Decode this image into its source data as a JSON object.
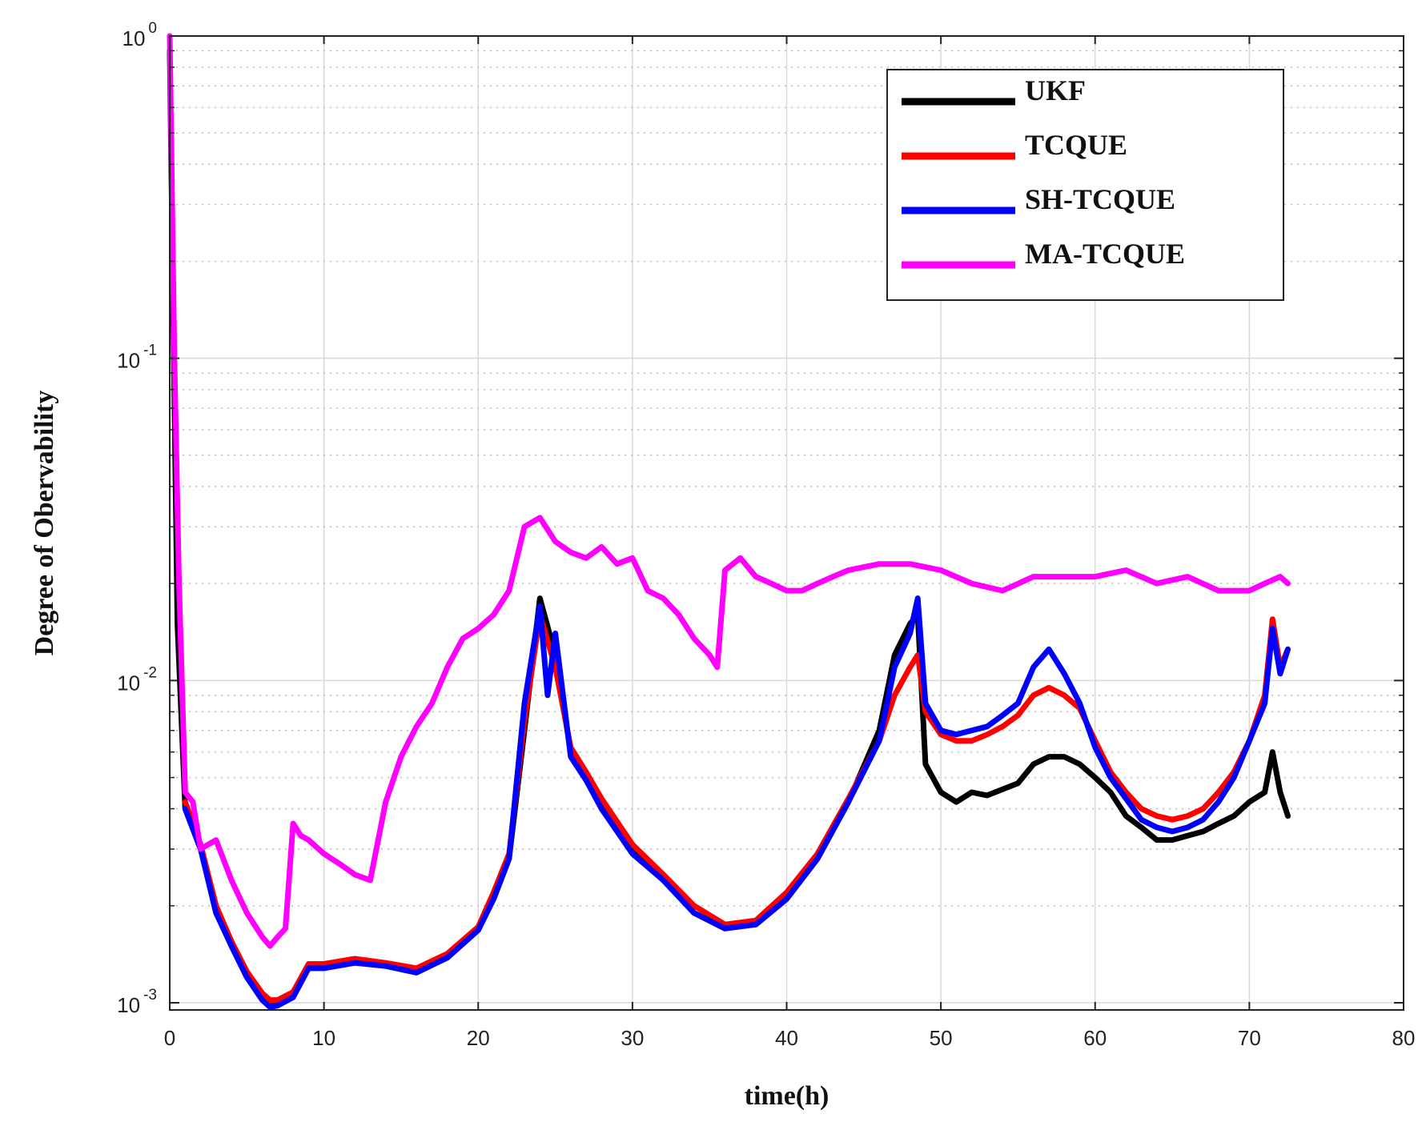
{
  "chart_data": {
    "type": "line",
    "xlabel": "time(h)",
    "ylabel": "Degree of Obervability",
    "xlim": [
      0,
      80
    ],
    "ylim": [
      0.00095,
      1
    ],
    "yscale": "log",
    "grid": true,
    "legend_position": "top-right",
    "x_ticks": [
      "0",
      "10",
      "20",
      "30",
      "40",
      "50",
      "60",
      "70",
      "80"
    ],
    "y_ticks": [
      {
        "value": 1,
        "base": "10",
        "exp": "0"
      },
      {
        "value": 0.1,
        "base": "10",
        "exp": "-1"
      },
      {
        "value": 0.01,
        "base": "10",
        "exp": "-2"
      },
      {
        "value": 0.001,
        "base": "10",
        "exp": "-3"
      }
    ],
    "series": [
      {
        "name": "UKF",
        "color": "#000000",
        "x": [
          0,
          0.5,
          1,
          2,
          3,
          4,
          5,
          6,
          6.5,
          7,
          8,
          9,
          10,
          12,
          14,
          16,
          18,
          20,
          21,
          22,
          23,
          24,
          25,
          26,
          27,
          28,
          30,
          32,
          34,
          36,
          38,
          40,
          42,
          44,
          46,
          47,
          48,
          48.5,
          49,
          50,
          51,
          52,
          53,
          54,
          55,
          56,
          57,
          58,
          59,
          60,
          61,
          62,
          63,
          64,
          65,
          66,
          67,
          68,
          69,
          70,
          71,
          71.5,
          72,
          72.5
        ],
        "y": [
          0.9,
          0.015,
          0.004,
          0.003,
          0.002,
          0.0015,
          0.0012,
          0.00105,
          0.001,
          0.001,
          0.00105,
          0.0013,
          0.0013,
          0.00135,
          0.0013,
          0.00125,
          0.0014,
          0.0017,
          0.0021,
          0.0028,
          0.007,
          0.018,
          0.012,
          0.006,
          0.005,
          0.0042,
          0.003,
          0.0024,
          0.0019,
          0.0017,
          0.00175,
          0.0021,
          0.0028,
          0.0042,
          0.007,
          0.012,
          0.015,
          0.016,
          0.0055,
          0.0045,
          0.0042,
          0.0045,
          0.0044,
          0.0046,
          0.0048,
          0.0055,
          0.0058,
          0.0058,
          0.0055,
          0.005,
          0.0045,
          0.0038,
          0.0035,
          0.0032,
          0.0032,
          0.0033,
          0.0034,
          0.0036,
          0.0038,
          0.0042,
          0.0045,
          0.006,
          0.0045,
          0.0038
        ]
      },
      {
        "name": "TCQUE",
        "color": "#ff0000",
        "x": [
          1,
          2,
          3,
          4,
          5,
          6,
          6.5,
          7,
          8,
          9,
          10,
          12,
          14,
          16,
          18,
          20,
          21,
          22,
          23,
          24,
          25,
          26,
          27,
          28,
          30,
          32,
          34,
          36,
          38,
          40,
          42,
          44,
          46,
          47,
          48,
          48.5,
          49,
          50,
          51,
          52,
          53,
          54,
          55,
          56,
          57,
          58,
          59,
          60,
          61,
          62,
          63,
          64,
          65,
          66,
          67,
          68,
          69,
          70,
          71,
          71.5,
          72,
          72.5
        ],
        "y": [
          0.0042,
          0.0031,
          0.002,
          0.00155,
          0.00125,
          0.00107,
          0.00102,
          0.00102,
          0.00108,
          0.00132,
          0.00132,
          0.00137,
          0.00133,
          0.00128,
          0.00142,
          0.00172,
          0.0022,
          0.0029,
          0.0075,
          0.016,
          0.011,
          0.0062,
          0.0052,
          0.0043,
          0.0031,
          0.0025,
          0.002,
          0.00175,
          0.0018,
          0.0022,
          0.0029,
          0.0043,
          0.0065,
          0.009,
          0.011,
          0.012,
          0.008,
          0.0068,
          0.0065,
          0.0065,
          0.0068,
          0.0072,
          0.0078,
          0.009,
          0.0095,
          0.009,
          0.0082,
          0.0065,
          0.0052,
          0.0045,
          0.004,
          0.0038,
          0.0037,
          0.0038,
          0.004,
          0.0045,
          0.0052,
          0.0065,
          0.009,
          0.0155,
          0.011,
          0.0125
        ]
      },
      {
        "name": "SH-TCQUE",
        "color": "#0000ff",
        "x": [
          1,
          2,
          3,
          4,
          5,
          6,
          6.5,
          7,
          8,
          9,
          10,
          12,
          14,
          16,
          18,
          20,
          21,
          22,
          23,
          24,
          24.5,
          25,
          26,
          27,
          28,
          30,
          32,
          34,
          36,
          38,
          40,
          42,
          44,
          46,
          47,
          48,
          48.5,
          49,
          50,
          51,
          52,
          53,
          54,
          55,
          56,
          57,
          58,
          59,
          60,
          61,
          62,
          63,
          64,
          65,
          66,
          67,
          68,
          69,
          70,
          71,
          71.5,
          72,
          72.5
        ],
        "y": [
          0.004,
          0.003,
          0.0019,
          0.0015,
          0.0012,
          0.00102,
          0.00097,
          0.00098,
          0.00104,
          0.00128,
          0.00128,
          0.00133,
          0.0013,
          0.00124,
          0.00138,
          0.00168,
          0.0021,
          0.0028,
          0.0085,
          0.017,
          0.009,
          0.014,
          0.0058,
          0.0049,
          0.004,
          0.0029,
          0.0024,
          0.0019,
          0.0017,
          0.00175,
          0.0021,
          0.0028,
          0.0042,
          0.0065,
          0.011,
          0.014,
          0.018,
          0.0085,
          0.007,
          0.0068,
          0.007,
          0.0072,
          0.0078,
          0.0085,
          0.011,
          0.0125,
          0.0105,
          0.0085,
          0.0062,
          0.005,
          0.0043,
          0.0037,
          0.0035,
          0.0034,
          0.0035,
          0.0037,
          0.0042,
          0.005,
          0.0065,
          0.0085,
          0.0145,
          0.0105,
          0.0125
        ]
      },
      {
        "name": "MA-TCQUE",
        "color": "#ff00ff",
        "x": [
          0,
          0.3,
          0.6,
          1,
          1.5,
          2,
          3,
          4,
          5,
          6,
          6.5,
          7,
          7.5,
          8,
          8.5,
          9,
          10,
          11,
          12,
          13,
          14,
          15,
          16,
          17,
          18,
          19,
          20,
          21,
          22,
          23,
          24,
          25,
          26,
          27,
          28,
          29,
          30,
          31,
          32,
          33,
          34,
          35,
          35.5,
          36,
          37,
          38,
          39,
          40,
          41,
          42,
          43,
          44,
          46,
          48,
          50,
          52,
          54,
          56,
          58,
          60,
          62,
          64,
          66,
          68,
          70,
          71,
          72,
          72.5
        ],
        "y": [
          1,
          0.1,
          0.02,
          0.0045,
          0.0042,
          0.003,
          0.0032,
          0.0024,
          0.0019,
          0.0016,
          0.0015,
          0.0016,
          0.0017,
          0.0036,
          0.0033,
          0.0032,
          0.0029,
          0.0027,
          0.0025,
          0.0024,
          0.0042,
          0.0058,
          0.0072,
          0.0085,
          0.011,
          0.0135,
          0.0145,
          0.016,
          0.019,
          0.03,
          0.032,
          0.027,
          0.025,
          0.024,
          0.026,
          0.023,
          0.024,
          0.019,
          0.018,
          0.016,
          0.0135,
          0.012,
          0.011,
          0.022,
          0.024,
          0.021,
          0.02,
          0.019,
          0.019,
          0.02,
          0.021,
          0.022,
          0.023,
          0.023,
          0.022,
          0.02,
          0.019,
          0.021,
          0.021,
          0.021,
          0.022,
          0.02,
          0.021,
          0.019,
          0.019,
          0.02,
          0.021,
          0.02
        ]
      }
    ]
  }
}
